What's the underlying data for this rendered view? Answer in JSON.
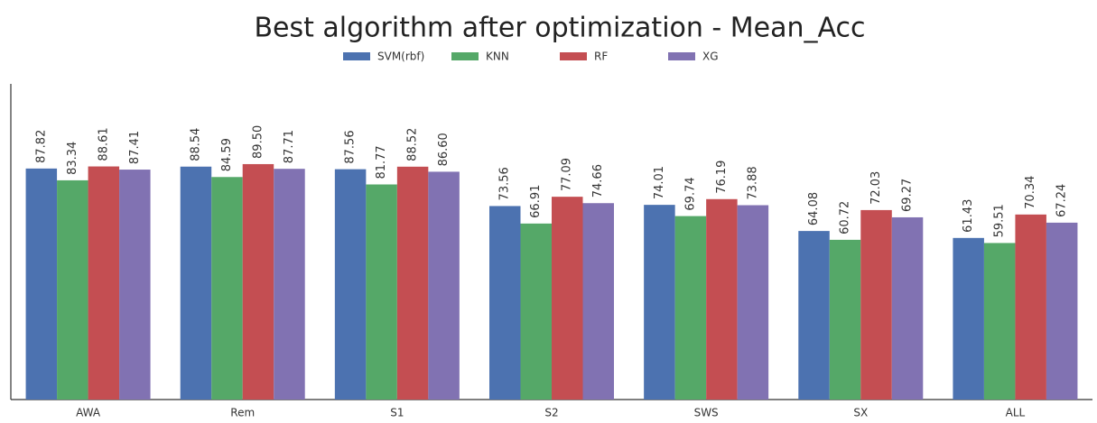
{
  "chart_data": {
    "type": "bar",
    "title": "Best algorithm after optimization - Mean_Acc",
    "categories": [
      "AWA",
      "Rem",
      "S1",
      "S2",
      "SWS",
      "SX",
      "ALL"
    ],
    "series": [
      {
        "name": "SVM(rbf)",
        "color": "#4c72b0",
        "values": [
          87.82,
          88.54,
          87.56,
          73.56,
          74.01,
          64.08,
          61.43
        ],
        "value_labels": [
          "87.82",
          "88.54",
          "87.56",
          "73.56",
          "74.01",
          "64.08",
          "61.43"
        ]
      },
      {
        "name": "KNN",
        "color": "#55a868",
        "values": [
          83.34,
          84.59,
          81.77,
          66.91,
          69.74,
          60.72,
          59.51
        ],
        "value_labels": [
          "83.34",
          "84.59",
          "81.77",
          "66.91",
          "69.74",
          "60.72",
          "59.51"
        ]
      },
      {
        "name": "RF",
        "color": "#c44e52",
        "values": [
          88.61,
          89.5,
          88.52,
          77.09,
          76.19,
          72.03,
          70.34
        ],
        "value_labels": [
          "88.61",
          "89.50",
          "88.52",
          "77.09",
          "76.19",
          "72.03",
          "70.34"
        ]
      },
      {
        "name": "XG",
        "color": "#8172b2",
        "values": [
          87.41,
          87.71,
          86.6,
          74.66,
          73.88,
          69.27,
          67.24
        ],
        "value_labels": [
          "87.41",
          "87.71",
          "86.60",
          "74.66",
          "73.88",
          "69.27",
          "67.24"
        ]
      }
    ],
    "ylim": [
      0,
      120
    ],
    "legend": "top"
  }
}
